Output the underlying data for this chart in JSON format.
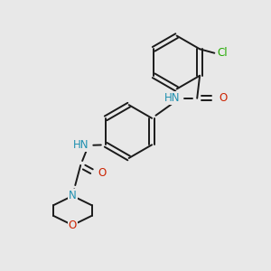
{
  "background_color": "#e8e8e8",
  "bond_color": "#1a1a1a",
  "atom_colors": {
    "N": "#1e90b0",
    "O": "#cc2200",
    "Cl": "#22aa00",
    "C": "#1a1a1a"
  },
  "figsize": [
    3.0,
    3.0
  ],
  "dpi": 100
}
